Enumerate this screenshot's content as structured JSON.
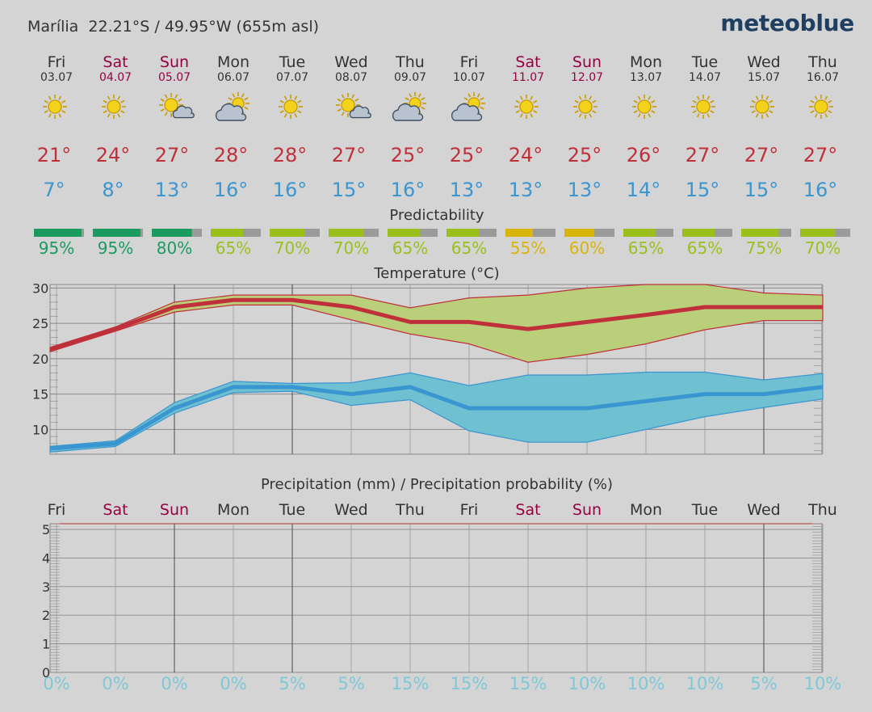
{
  "header": {
    "location": "Marília  22.21°S / 49.95°W (655m asl)",
    "brand": "meteoblue"
  },
  "days": [
    {
      "day": "Fri",
      "date": "03.07",
      "weekend": false,
      "icon": "sun-icon",
      "tmax": "21°",
      "tmin": "7°",
      "pred": "95%",
      "pred_value": 95,
      "pred_color": "#1a9b5f",
      "precip_prob": "0%"
    },
    {
      "day": "Sat",
      "date": "04.07",
      "weekend": true,
      "icon": "sun-icon",
      "tmax": "24°",
      "tmin": "8°",
      "pred": "95%",
      "pred_value": 95,
      "pred_color": "#1a9b5f",
      "precip_prob": "0%"
    },
    {
      "day": "Sun",
      "date": "05.07",
      "weekend": true,
      "icon": "sun-cloud-icon",
      "tmax": "27°",
      "tmin": "13°",
      "pred": "80%",
      "pred_value": 80,
      "pred_color": "#1a9b5f",
      "precip_prob": "0%"
    },
    {
      "day": "Mon",
      "date": "06.07",
      "weekend": false,
      "icon": "cloud-sun-icon",
      "tmax": "28°",
      "tmin": "16°",
      "pred": "65%",
      "pred_value": 65,
      "pred_color": "#9bc01c",
      "precip_prob": "0%"
    },
    {
      "day": "Tue",
      "date": "07.07",
      "weekend": false,
      "icon": "sun-icon",
      "tmax": "28°",
      "tmin": "16°",
      "pred": "70%",
      "pred_value": 70,
      "pred_color": "#9bc01c",
      "precip_prob": "5%"
    },
    {
      "day": "Wed",
      "date": "08.07",
      "weekend": false,
      "icon": "sun-cloud-icon",
      "tmax": "27°",
      "tmin": "15°",
      "pred": "70%",
      "pred_value": 70,
      "pred_color": "#9bc01c",
      "precip_prob": "5%"
    },
    {
      "day": "Thu",
      "date": "09.07",
      "weekend": false,
      "icon": "cloud-sun-icon",
      "tmax": "25°",
      "tmin": "16°",
      "pred": "65%",
      "pred_value": 65,
      "pred_color": "#9bc01c",
      "precip_prob": "15%"
    },
    {
      "day": "Fri",
      "date": "10.07",
      "weekend": false,
      "icon": "cloud-sun-icon",
      "tmax": "25°",
      "tmin": "13°",
      "pred": "65%",
      "pred_value": 65,
      "pred_color": "#9bc01c",
      "precip_prob": "15%"
    },
    {
      "day": "Sat",
      "date": "11.07",
      "weekend": true,
      "icon": "sun-icon",
      "tmax": "24°",
      "tmin": "13°",
      "pred": "55%",
      "pred_value": 55,
      "pred_color": "#d9b40a",
      "precip_prob": "15%"
    },
    {
      "day": "Sun",
      "date": "12.07",
      "weekend": true,
      "icon": "sun-icon",
      "tmax": "25°",
      "tmin": "13°",
      "pred": "60%",
      "pred_value": 60,
      "pred_color": "#d9b40a",
      "precip_prob": "10%"
    },
    {
      "day": "Mon",
      "date": "13.07",
      "weekend": false,
      "icon": "sun-icon",
      "tmax": "26°",
      "tmin": "14°",
      "pred": "65%",
      "pred_value": 65,
      "pred_color": "#9bc01c",
      "precip_prob": "10%"
    },
    {
      "day": "Tue",
      "date": "14.07",
      "weekend": false,
      "icon": "sun-icon",
      "tmax": "27°",
      "tmin": "15°",
      "pred": "65%",
      "pred_value": 65,
      "pred_color": "#9bc01c",
      "precip_prob": "10%"
    },
    {
      "day": "Wed",
      "date": "15.07",
      "weekend": false,
      "icon": "sun-icon",
      "tmax": "27°",
      "tmin": "15°",
      "pred": "75%",
      "pred_value": 75,
      "pred_color": "#9bc01c",
      "precip_prob": "5%"
    },
    {
      "day": "Thu",
      "date": "16.07",
      "weekend": false,
      "icon": "sun-icon",
      "tmax": "27°",
      "tmin": "16°",
      "pred": "70%",
      "pred_value": 70,
      "pred_color": "#9bc01c",
      "precip_prob": "10%"
    }
  ],
  "predictability_title": "Predictability",
  "colors": {
    "weekend": "#990044",
    "weekday": "#333333",
    "tmax": "#c0303a",
    "tmin": "#3a96d0",
    "precip_prob": "#7ec8d8",
    "band_max": "#b9cf7a",
    "band_min": "#6fc0d0"
  },
  "chart_data": [
    {
      "type": "line",
      "title": "Temperature (°C)",
      "ylim": [
        6.5,
        30.5
      ],
      "yticks": [
        10,
        15,
        20,
        25,
        30
      ],
      "grid": true,
      "x": [
        0,
        1,
        2,
        3,
        4,
        5,
        6,
        7,
        8,
        9,
        10,
        11,
        12,
        13
      ],
      "series": [
        {
          "role": "max",
          "values": [
            21.3,
            24.2,
            27.3,
            28.3,
            28.3,
            27.3,
            25.2,
            25.2,
            24.2,
            25.2,
            26.2,
            27.3,
            27.3,
            27.3
          ]
        },
        {
          "role": "max-upper",
          "values": [
            21.6,
            24.5,
            28.0,
            29.0,
            29.0,
            29.0,
            27.2,
            28.6,
            29.0,
            30.0,
            30.5,
            30.5,
            29.3,
            29.0
          ]
        },
        {
          "role": "max-lower",
          "values": [
            21.0,
            23.9,
            26.6,
            27.6,
            27.6,
            25.5,
            23.5,
            22.1,
            19.5,
            20.6,
            22.1,
            24.1,
            25.4,
            25.4
          ]
        },
        {
          "role": "min",
          "values": [
            7.3,
            8.0,
            13.0,
            16.0,
            16.0,
            15.0,
            16.0,
            13.0,
            13.0,
            13.0,
            14.0,
            15.0,
            15.0,
            16.0
          ]
        },
        {
          "role": "min-upper",
          "values": [
            7.6,
            8.4,
            13.8,
            16.8,
            16.5,
            16.6,
            18.0,
            16.2,
            17.7,
            17.7,
            18.1,
            18.1,
            17.0,
            17.9
          ]
        },
        {
          "role": "min-lower",
          "values": [
            6.8,
            7.6,
            12.3,
            15.2,
            15.4,
            13.4,
            14.2,
            9.8,
            8.2,
            8.2,
            10.0,
            11.8,
            13.1,
            14.3
          ]
        }
      ]
    },
    {
      "type": "bar",
      "title": "Precipitation (mm) / Precipitation probability (%)",
      "ylim": [
        0,
        5.2
      ],
      "yticks": [
        0,
        1,
        2,
        3,
        4,
        5
      ],
      "grid": true,
      "categories": [
        "Fri",
        "Sat",
        "Sun",
        "Mon",
        "Tue",
        "Wed",
        "Thu",
        "Fri",
        "Sat",
        "Sun",
        "Mon",
        "Tue",
        "Wed",
        "Thu"
      ],
      "values": [
        0,
        0,
        0,
        0,
        0,
        0,
        0,
        0,
        0,
        0,
        0,
        0,
        0,
        0
      ],
      "probability_labels": [
        "0%",
        "0%",
        "0%",
        "0%",
        "5%",
        "5%",
        "15%",
        "15%",
        "15%",
        "10%",
        "10%",
        "10%",
        "5%",
        "10%"
      ]
    }
  ]
}
